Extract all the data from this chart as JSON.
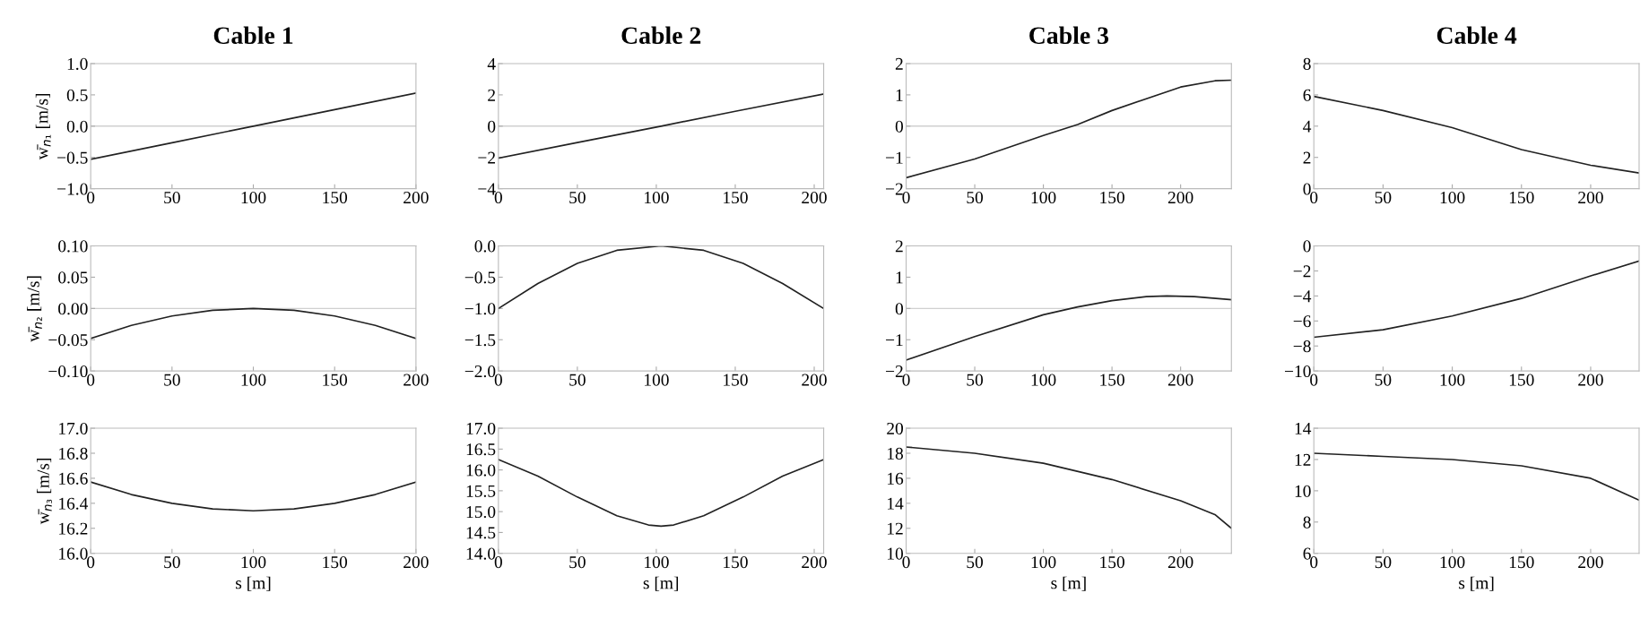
{
  "chart_data": [
    {
      "type": "line",
      "title": "Cable 1",
      "ylabel": "w̄$_{n₁}$ [m/s]",
      "x": [
        0,
        50,
        100,
        150,
        200
      ],
      "series": [
        {
          "color": "#222222",
          "values": [
            -0.53,
            -0.265,
            0,
            0.265,
            0.53
          ]
        }
      ],
      "xlim": [
        0,
        200
      ],
      "xticks": [
        0,
        50,
        100,
        150,
        200
      ],
      "ylim": [
        -1.0,
        1.0
      ],
      "yticks": [
        {
          "value": -1.0,
          "label": "−1.0"
        },
        {
          "value": -0.5,
          "label": "−0.5"
        },
        {
          "value": 0,
          "label": "0.0"
        },
        {
          "value": 0.5,
          "label": "0.5"
        },
        {
          "value": 1.0,
          "label": "1.0"
        }
      ],
      "ref_lines": [
        {
          "axis": "y",
          "value": 0,
          "color": "#d0d0d0"
        }
      ]
    },
    {
      "type": "line",
      "title": "Cable 2",
      "x": [
        0,
        50,
        103,
        150,
        206
      ],
      "series": [
        {
          "color": "#222222",
          "values": [
            -2.05,
            -1.05,
            0,
            0.95,
            2.05
          ]
        }
      ],
      "xlim": [
        0,
        206
      ],
      "xticks": [
        0,
        50,
        100,
        150,
        200
      ],
      "ylim": [
        -4,
        4
      ],
      "yticks": [
        {
          "value": -4,
          "label": "−4"
        },
        {
          "value": -2,
          "label": "−2"
        },
        0,
        2,
        4
      ],
      "ref_lines": [
        {
          "axis": "y",
          "value": 0,
          "color": "#d0d0d0"
        }
      ]
    },
    {
      "type": "line",
      "title": "Cable 3",
      "x": [
        0,
        50,
        100,
        125,
        150,
        200,
        225,
        237
      ],
      "series": [
        {
          "color": "#222222",
          "values": [
            -1.65,
            -1.05,
            -0.3,
            0.05,
            0.5,
            1.25,
            1.45,
            1.47
          ]
        }
      ],
      "xlim": [
        0,
        237
      ],
      "xticks": [
        0,
        50,
        100,
        150,
        200
      ],
      "ylim": [
        -2,
        2
      ],
      "yticks": [
        {
          "value": -2,
          "label": "−2"
        },
        {
          "value": -1,
          "label": "−1"
        },
        0,
        1,
        2
      ],
      "ref_lines": [
        {
          "axis": "y",
          "value": 0,
          "color": "#d0d0d0"
        }
      ]
    },
    {
      "type": "line",
      "title": "Cable 4",
      "x": [
        0,
        50,
        100,
        150,
        200,
        235
      ],
      "series": [
        {
          "color": "#222222",
          "values": [
            5.9,
            5.0,
            3.9,
            2.5,
            1.5,
            1.0
          ]
        }
      ],
      "xlim": [
        0,
        235
      ],
      "xticks": [
        0,
        50,
        100,
        150,
        200
      ],
      "ylim": [
        0,
        8
      ],
      "yticks": [
        0,
        2,
        4,
        6,
        8
      ]
    },
    {
      "type": "line",
      "ylabel": "w̄$_{n₂}$ [m/s]",
      "x": [
        0,
        25,
        50,
        75,
        100,
        125,
        150,
        175,
        200
      ],
      "series": [
        {
          "color": "#222222",
          "values": [
            -0.048,
            -0.027,
            -0.012,
            -0.003,
            0,
            -0.003,
            -0.012,
            -0.027,
            -0.048
          ]
        }
      ],
      "xlim": [
        0,
        200
      ],
      "xticks": [
        0,
        50,
        100,
        150,
        200
      ],
      "ylim": [
        -0.1,
        0.1
      ],
      "yticks": [
        {
          "value": -0.1,
          "label": "−0.10"
        },
        {
          "value": -0.05,
          "label": "−0.05"
        },
        {
          "value": 0,
          "label": "0.00"
        },
        {
          "value": 0.05,
          "label": "0.05"
        },
        {
          "value": 0.1,
          "label": "0.10"
        }
      ],
      "ref_lines": [
        {
          "axis": "y",
          "value": 0,
          "color": "#d0d0d0"
        }
      ]
    },
    {
      "type": "line",
      "x": [
        0,
        25,
        50,
        75,
        103,
        130,
        155,
        180,
        206
      ],
      "series": [
        {
          "color": "#222222",
          "values": [
            -1.0,
            -0.6,
            -0.28,
            -0.07,
            0,
            -0.07,
            -0.28,
            -0.6,
            -1.0
          ]
        }
      ],
      "xlim": [
        0,
        206
      ],
      "xticks": [
        0,
        50,
        100,
        150,
        200
      ],
      "ylim": [
        -2.0,
        0.0
      ],
      "yticks": [
        {
          "value": -2.0,
          "label": "−2.0"
        },
        {
          "value": -1.5,
          "label": "−1.5"
        },
        {
          "value": -1.0,
          "label": "−1.0"
        },
        {
          "value": -0.5,
          "label": "−0.5"
        },
        {
          "value": 0,
          "label": "0.0"
        }
      ]
    },
    {
      "type": "line",
      "x": [
        0,
        50,
        100,
        125,
        150,
        175,
        190,
        210,
        237
      ],
      "series": [
        {
          "color": "#222222",
          "values": [
            -1.65,
            -0.9,
            -0.2,
            0.05,
            0.25,
            0.38,
            0.4,
            0.38,
            0.28
          ]
        }
      ],
      "xlim": [
        0,
        237
      ],
      "xticks": [
        0,
        50,
        100,
        150,
        200
      ],
      "ylim": [
        -2,
        2
      ],
      "yticks": [
        {
          "value": -2,
          "label": "−2"
        },
        {
          "value": -1,
          "label": "−1"
        },
        0,
        1,
        2
      ],
      "ref_lines": [
        {
          "axis": "y",
          "value": 0,
          "color": "#d0d0d0"
        }
      ]
    },
    {
      "type": "line",
      "x": [
        0,
        50,
        100,
        150,
        200,
        235
      ],
      "series": [
        {
          "color": "#222222",
          "values": [
            -7.3,
            -6.7,
            -5.6,
            -4.2,
            -2.4,
            -1.2
          ]
        }
      ],
      "xlim": [
        0,
        235
      ],
      "xticks": [
        0,
        50,
        100,
        150,
        200
      ],
      "ylim": [
        -10,
        0
      ],
      "yticks": [
        {
          "value": -10,
          "label": "−10"
        },
        {
          "value": -8,
          "label": "−8"
        },
        {
          "value": -6,
          "label": "−6"
        },
        {
          "value": -4,
          "label": "−4"
        },
        {
          "value": -2,
          "label": "−2"
        },
        0
      ]
    },
    {
      "type": "line",
      "ylabel": "w̄$_{n₃}$ [m/s]",
      "xlabel": "s [m]",
      "x": [
        0,
        25,
        50,
        75,
        100,
        125,
        150,
        175,
        200
      ],
      "series": [
        {
          "color": "#222222",
          "values": [
            16.57,
            16.47,
            16.4,
            16.355,
            16.34,
            16.355,
            16.4,
            16.47,
            16.57
          ]
        }
      ],
      "xlim": [
        0,
        200
      ],
      "xticks": [
        0,
        50,
        100,
        150,
        200
      ],
      "ylim": [
        16.0,
        17.0
      ],
      "yticks": [
        {
          "value": 16.0,
          "label": "16.0"
        },
        {
          "value": 16.2,
          "label": "16.2"
        },
        {
          "value": 16.4,
          "label": "16.4"
        },
        {
          "value": 16.6,
          "label": "16.6"
        },
        {
          "value": 16.8,
          "label": "16.8"
        },
        {
          "value": 17.0,
          "label": "17.0"
        }
      ]
    },
    {
      "type": "line",
      "xlabel": "s [m]",
      "x": [
        0,
        25,
        50,
        75,
        95,
        103,
        111,
        130,
        155,
        180,
        206
      ],
      "series": [
        {
          "color": "#222222",
          "values": [
            16.25,
            15.85,
            15.35,
            14.9,
            14.68,
            14.65,
            14.68,
            14.9,
            15.35,
            15.85,
            16.25
          ]
        }
      ],
      "xlim": [
        0,
        206
      ],
      "xticks": [
        0,
        50,
        100,
        150,
        200
      ],
      "ylim": [
        14.0,
        17.0
      ],
      "yticks": [
        {
          "value": 14.0,
          "label": "14.0"
        },
        {
          "value": 14.5,
          "label": "14.5"
        },
        {
          "value": 15.0,
          "label": "15.0"
        },
        {
          "value": 15.5,
          "label": "15.5"
        },
        {
          "value": 16.0,
          "label": "16.0"
        },
        {
          "value": 16.5,
          "label": "16.5"
        },
        {
          "value": 17.0,
          "label": "17.0"
        }
      ]
    },
    {
      "type": "line",
      "xlabel": "s [m]",
      "x": [
        0,
        50,
        100,
        150,
        200,
        225,
        237
      ],
      "series": [
        {
          "color": "#222222",
          "values": [
            18.5,
            18.0,
            17.2,
            15.9,
            14.2,
            13.1,
            12.0
          ]
        }
      ],
      "xlim": [
        0,
        237
      ],
      "xticks": [
        0,
        50,
        100,
        150,
        200
      ],
      "ylim": [
        10,
        20
      ],
      "yticks": [
        10,
        12,
        14,
        16,
        18,
        20
      ]
    },
    {
      "type": "line",
      "xlabel": "s [m]",
      "x": [
        0,
        50,
        100,
        150,
        200,
        235
      ],
      "series": [
        {
          "color": "#222222",
          "values": [
            12.4,
            12.2,
            12.0,
            11.6,
            10.8,
            9.4
          ]
        }
      ],
      "xlim": [
        0,
        235
      ],
      "xticks": [
        0,
        50,
        100,
        150,
        200
      ],
      "ylim": [
        6,
        14
      ],
      "yticks": [
        6,
        8,
        10,
        12,
        14
      ]
    }
  ]
}
